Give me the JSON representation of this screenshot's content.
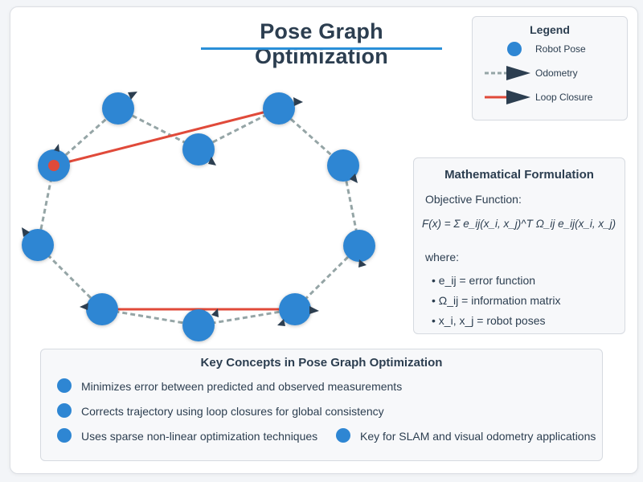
{
  "title": "Pose Graph Optimization",
  "colors": {
    "pose": "#2e86d3",
    "pose_dark": "#1f6fb5",
    "odometry": "#95a5a6",
    "loop_closure": "#e04a3a",
    "heading": "#2c3e50",
    "start_marker": "#e04a3a"
  },
  "legend": {
    "title": "Legend",
    "items": [
      {
        "label": "Robot Pose",
        "icon": "robot-pose-icon"
      },
      {
        "label": "Odometry",
        "icon": "odometry-arrow-icon"
      },
      {
        "label": "Loop Closure",
        "icon": "loop-closure-line-icon"
      }
    ]
  },
  "math": {
    "title": "Mathematical Formulation",
    "objective_label": "Objective Function:",
    "formula": "F(x) = Σ e_ij(x_i, x_j)^T Ω_ij e_ij(x_i, x_j)",
    "where_label": "where:",
    "bullets": [
      "• e_ij = error function",
      "• Ω_ij = information matrix",
      "• x_i, x_j = robot poses"
    ]
  },
  "concepts": {
    "title": "Key Concepts in Pose Graph Optimization",
    "items": [
      "Minimizes error between predicted and observed measurements",
      "Corrects trajectory using loop closures for global consistency",
      "Uses sparse non-linear optimization techniques",
      "Key for SLAM and visual odometry applications"
    ]
  }
}
